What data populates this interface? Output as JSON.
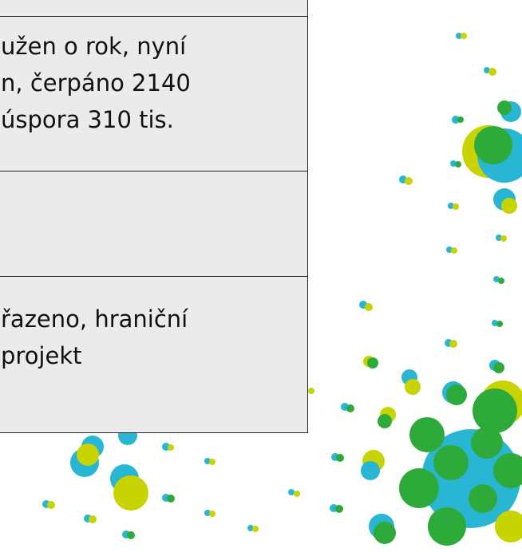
{
  "table": {
    "rows": [
      {
        "lines": [
          "užen o rok, nyní",
          "n, čerpáno 2140",
          "úspora 310 tis."
        ]
      },
      {
        "lines": [
          "řazeno, hraniční",
          "projekt"
        ]
      }
    ]
  }
}
